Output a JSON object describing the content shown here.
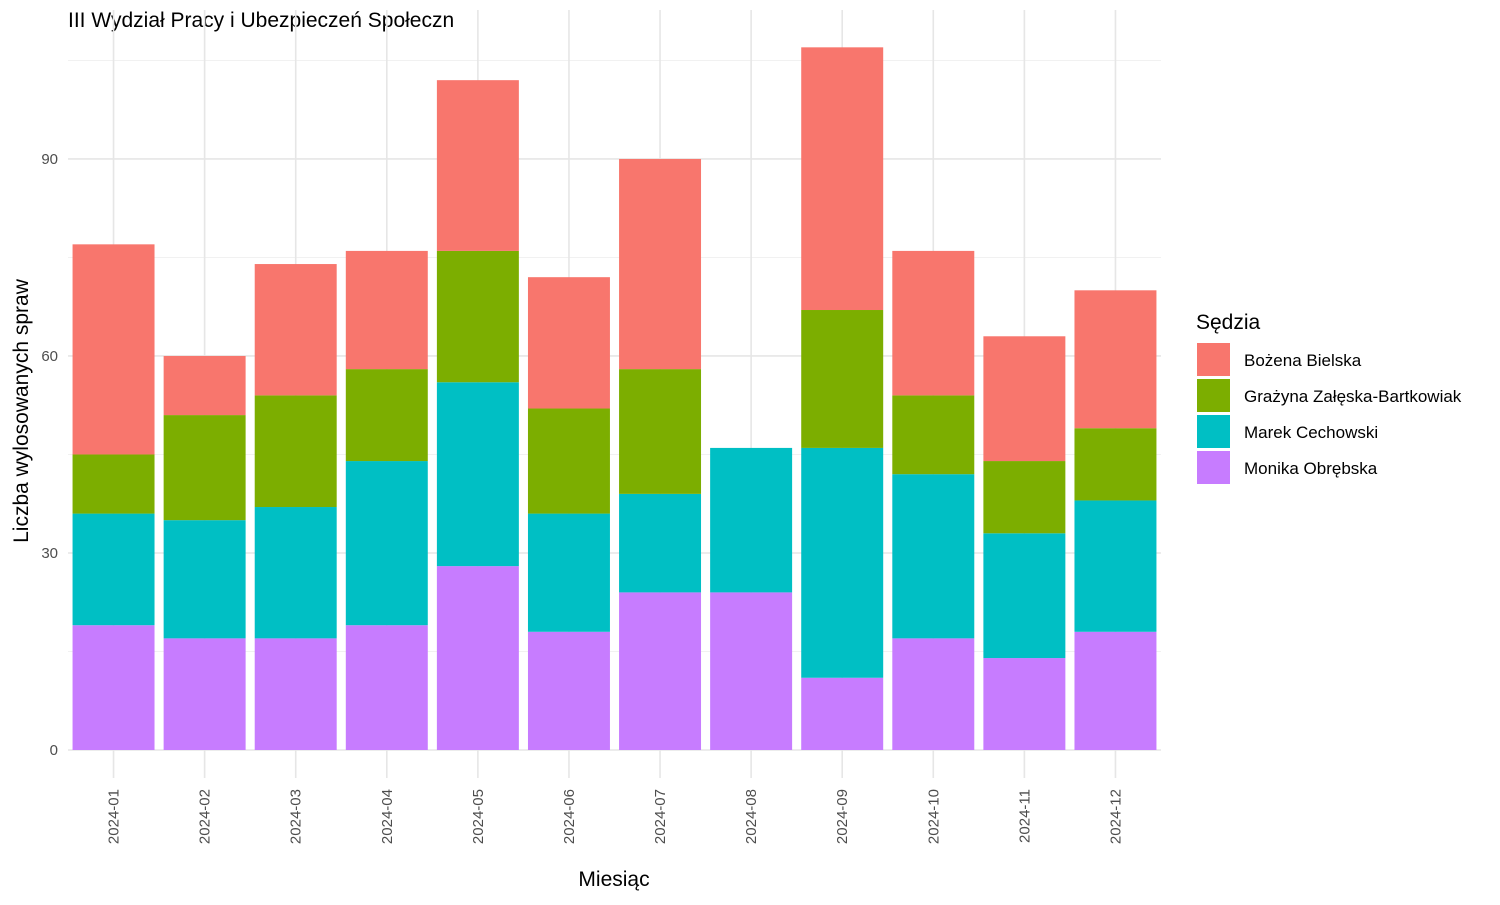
{
  "chart_data": {
    "type": "bar",
    "stacked": true,
    "title": "III Wydział Pracy i Ubezpieczeń Społeczn",
    "xlabel": "Miesiąc",
    "ylabel": "Liczba wylosowanych spraw",
    "ylim": [
      0,
      112
    ],
    "yticks": [
      0,
      30,
      60,
      90
    ],
    "ytick_labels": [
      "0",
      "30",
      "60",
      "90"
    ],
    "grid": true,
    "categories": [
      "2024-01",
      "2024-02",
      "2024-03",
      "2024-04",
      "2024-05",
      "2024-06",
      "2024-07",
      "2024-08",
      "2024-09",
      "2024-10",
      "2024-11",
      "2024-12"
    ],
    "legend": {
      "title": "Sędzia",
      "position": "right"
    },
    "series": [
      {
        "name": "Monika Obrębska",
        "color": "#C77CFF",
        "values": [
          19,
          17,
          17,
          19,
          28,
          18,
          24,
          24,
          11,
          17,
          14,
          18
        ]
      },
      {
        "name": "Marek Cechowski",
        "color": "#00BFC4",
        "values": [
          17,
          18,
          20,
          25,
          28,
          18,
          15,
          22,
          35,
          25,
          19,
          20
        ]
      },
      {
        "name": "Grażyna Załęska-Bartkowiak",
        "color": "#7CAE00",
        "values": [
          9,
          16,
          17,
          14,
          20,
          16,
          19,
          0,
          21,
          12,
          11,
          11
        ]
      },
      {
        "name": "Bożena Bielska",
        "color": "#F8766D",
        "values": [
          32,
          9,
          20,
          18,
          26,
          20,
          32,
          0,
          40,
          22,
          19,
          21
        ]
      }
    ],
    "legend_order": [
      "Bożena Bielska",
      "Grażyna Załęska-Bartkowiak",
      "Marek Cechowski",
      "Monika Obrębska"
    ]
  }
}
